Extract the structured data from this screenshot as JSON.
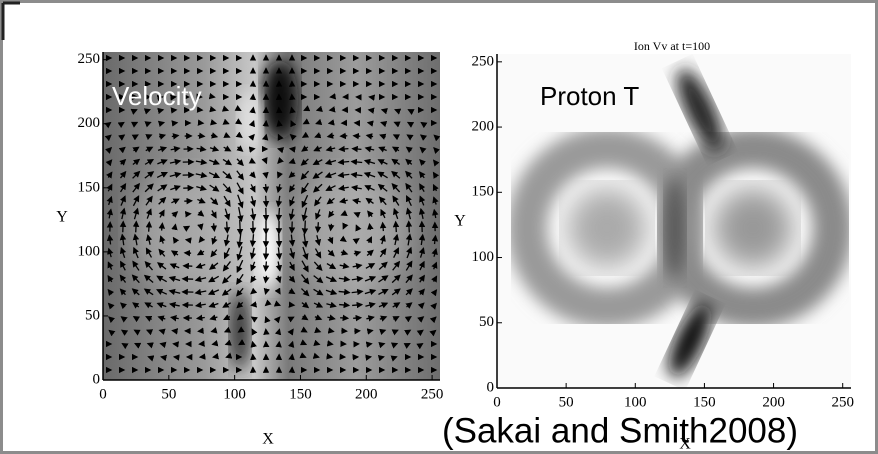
{
  "chart_data": [
    {
      "type": "vector-field",
      "annotation": "Velocity",
      "xlabel": "X",
      "ylabel": "Y",
      "xlim": [
        0,
        256
      ],
      "ylim": [
        0,
        256
      ],
      "xticks": [
        0,
        50,
        100,
        150,
        200,
        250
      ],
      "yticks": [
        0,
        50,
        100,
        150,
        200,
        250
      ]
    },
    {
      "type": "heatmap",
      "title": "Ion Vv at t=100",
      "annotation": "Proton T",
      "xlabel": "X",
      "ylabel": "Y",
      "xlim": [
        0,
        256
      ],
      "ylim": [
        0,
        256
      ],
      "xticks": [
        0,
        50,
        100,
        150,
        200,
        250
      ],
      "yticks": [
        0,
        50,
        100,
        150,
        200,
        250
      ]
    }
  ],
  "citation": "(Sakai and Smith2008)"
}
